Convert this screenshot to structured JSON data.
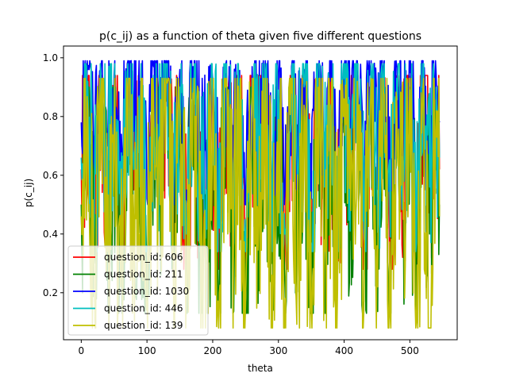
{
  "chart_data": {
    "type": "line",
    "title": "p(c_ij) as a function of theta given five different questions",
    "xlabel": "theta",
    "ylabel": "p(c_ij)",
    "xlim": [
      -27,
      572
    ],
    "ylim": [
      0.04,
      1.04
    ],
    "xticks": [
      0,
      100,
      200,
      300,
      400,
      500
    ],
    "yticks": [
      0.2,
      0.4,
      0.6,
      0.8,
      1.0
    ],
    "ytick_labels": [
      "0.2",
      "0.4",
      "0.6",
      "0.8",
      "1.0"
    ],
    "legend_position": "lower-left",
    "n_points": 546,
    "x_start": 0,
    "series": [
      {
        "name": "question_id: 606",
        "color": "#ff0000",
        "keypoints_x": [
          0,
          10,
          20,
          30,
          40,
          50,
          60,
          70,
          80,
          90,
          100,
          110,
          120,
          130,
          140,
          150,
          160,
          170,
          180,
          190,
          200,
          210,
          220,
          230,
          240,
          250,
          260,
          270,
          280,
          290,
          300,
          310,
          320,
          330,
          340,
          350,
          360,
          370,
          380,
          390,
          400,
          410,
          420,
          430,
          440,
          450,
          460,
          470,
          480,
          490,
          500,
          510,
          520,
          530,
          540,
          545
        ],
        "keypoints_y": [
          0.62,
          0.88,
          0.4,
          0.9,
          0.48,
          0.82,
          0.36,
          0.92,
          0.55,
          0.78,
          0.3,
          0.9,
          0.62,
          0.94,
          0.42,
          0.86,
          0.33,
          0.9,
          0.5,
          0.47,
          0.8,
          0.35,
          0.91,
          0.58,
          0.85,
          0.28,
          0.88,
          0.6,
          0.93,
          0.4,
          0.84,
          0.33,
          0.9,
          0.55,
          0.87,
          0.3,
          0.92,
          0.5,
          0.76,
          0.38,
          0.89,
          0.6,
          0.93,
          0.35,
          0.86,
          0.47,
          0.9,
          0.32,
          0.88,
          0.58,
          0.84,
          0.3,
          0.91,
          0.5,
          0.86,
          0.62
        ]
      },
      {
        "name": "question_id: 211",
        "color": "#008000",
        "keypoints_x": [
          0,
          10,
          20,
          30,
          40,
          50,
          60,
          70,
          80,
          90,
          100,
          110,
          120,
          130,
          140,
          150,
          160,
          170,
          180,
          190,
          200,
          210,
          220,
          230,
          240,
          250,
          260,
          270,
          280,
          290,
          300,
          310,
          320,
          330,
          340,
          350,
          360,
          370,
          380,
          390,
          400,
          410,
          420,
          430,
          440,
          450,
          460,
          470,
          480,
          490,
          500,
          510,
          520,
          530,
          540,
          545
        ],
        "keypoints_y": [
          0.5,
          0.8,
          0.3,
          0.85,
          0.38,
          0.75,
          0.26,
          0.88,
          0.45,
          0.7,
          0.2,
          0.86,
          0.52,
          0.9,
          0.32,
          0.8,
          0.22,
          0.86,
          0.4,
          0.3,
          0.72,
          0.25,
          0.88,
          0.48,
          0.78,
          0.18,
          0.84,
          0.5,
          0.9,
          0.3,
          0.77,
          0.22,
          0.86,
          0.45,
          0.8,
          0.13,
          0.88,
          0.4,
          0.7,
          0.28,
          0.84,
          0.5,
          0.9,
          0.17,
          0.8,
          0.37,
          0.86,
          0.22,
          0.84,
          0.48,
          0.78,
          0.2,
          0.88,
          0.4,
          0.8,
          0.5
        ]
      },
      {
        "name": "question_id: 1030",
        "color": "#0000ff",
        "keypoints_x": [
          0,
          10,
          20,
          30,
          40,
          50,
          60,
          70,
          80,
          90,
          100,
          110,
          120,
          130,
          140,
          150,
          160,
          170,
          180,
          190,
          200,
          210,
          220,
          230,
          240,
          250,
          260,
          270,
          280,
          290,
          300,
          310,
          320,
          330,
          340,
          350,
          360,
          370,
          380,
          390,
          400,
          410,
          420,
          430,
          440,
          450,
          460,
          470,
          480,
          490,
          500,
          510,
          520,
          530,
          540,
          545
        ],
        "keypoints_y": [
          0.78,
          0.96,
          0.62,
          0.97,
          0.7,
          0.94,
          0.58,
          0.98,
          0.75,
          0.92,
          0.52,
          0.97,
          0.8,
          0.99,
          0.64,
          0.96,
          0.55,
          0.97,
          0.72,
          0.68,
          0.93,
          0.57,
          0.98,
          0.77,
          0.95,
          0.5,
          0.97,
          0.79,
          0.99,
          0.62,
          0.95,
          0.55,
          0.97,
          0.74,
          0.96,
          0.52,
          0.98,
          0.7,
          0.92,
          0.6,
          0.97,
          0.79,
          0.99,
          0.57,
          0.96,
          0.68,
          0.97,
          0.54,
          0.97,
          0.77,
          0.95,
          0.52,
          0.99,
          0.7,
          0.94,
          0.78
        ]
      },
      {
        "name": "question_id: 446",
        "color": "#00bfbf",
        "keypoints_x": [
          0,
          10,
          20,
          30,
          40,
          50,
          60,
          70,
          80,
          90,
          100,
          110,
          120,
          130,
          140,
          150,
          160,
          170,
          180,
          190,
          200,
          210,
          220,
          230,
          240,
          250,
          260,
          270,
          280,
          290,
          300,
          310,
          320,
          330,
          340,
          350,
          360,
          370,
          380,
          390,
          400,
          410,
          420,
          430,
          440,
          450,
          460,
          470,
          480,
          490,
          500,
          510,
          520,
          530,
          540,
          545
        ],
        "keypoints_y": [
          0.66,
          0.92,
          0.48,
          0.94,
          0.56,
          0.88,
          0.42,
          0.95,
          0.62,
          0.85,
          0.36,
          0.94,
          0.68,
          0.97,
          0.5,
          0.9,
          0.4,
          0.93,
          0.58,
          0.55,
          0.87,
          0.42,
          0.95,
          0.64,
          0.9,
          0.34,
          0.93,
          0.66,
          0.96,
          0.48,
          0.89,
          0.4,
          0.94,
          0.6,
          0.91,
          0.37,
          0.95,
          0.56,
          0.84,
          0.45,
          0.93,
          0.66,
          0.96,
          0.42,
          0.9,
          0.54,
          0.94,
          0.39,
          0.93,
          0.64,
          0.89,
          0.37,
          0.98,
          0.56,
          0.9,
          0.66
        ]
      },
      {
        "name": "question_id: 139",
        "color": "#bfbf00",
        "keypoints_x": [
          0,
          10,
          20,
          30,
          40,
          50,
          60,
          70,
          80,
          90,
          100,
          110,
          120,
          130,
          140,
          150,
          160,
          170,
          180,
          190,
          200,
          210,
          220,
          230,
          240,
          250,
          260,
          270,
          280,
          290,
          300,
          310,
          320,
          330,
          340,
          350,
          360,
          370,
          380,
          390,
          400,
          410,
          420,
          430,
          440,
          450,
          460,
          470,
          480,
          490,
          500,
          510,
          520,
          530,
          540,
          545
        ],
        "keypoints_y": [
          0.46,
          0.82,
          0.26,
          0.86,
          0.34,
          0.76,
          0.22,
          0.9,
          0.42,
          0.72,
          0.17,
          0.88,
          0.5,
          0.92,
          0.28,
          0.82,
          0.19,
          0.88,
          0.37,
          0.35,
          0.74,
          0.2,
          0.9,
          0.45,
          0.8,
          0.16,
          0.86,
          0.48,
          0.93,
          0.26,
          0.79,
          0.18,
          0.88,
          0.42,
          0.82,
          0.15,
          0.9,
          0.38,
          0.72,
          0.22,
          0.86,
          0.48,
          0.92,
          0.14,
          0.82,
          0.36,
          0.88,
          0.12,
          0.86,
          0.45,
          0.8,
          0.1,
          0.9,
          0.08,
          0.82,
          0.46
        ]
      }
    ]
  }
}
